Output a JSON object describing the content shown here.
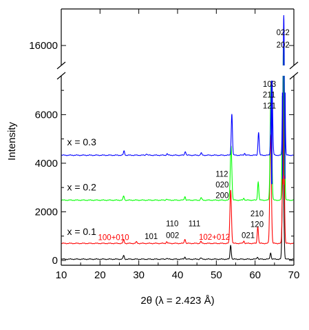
{
  "chart_data": {
    "type": "line",
    "xlabel": "2θ (λ = 2.423 Å)",
    "ylabel": "Intensity",
    "xlim": [
      10,
      70
    ],
    "ylim_lower": [
      -200,
      7600
    ],
    "ylim_upper": [
      14800,
      18200
    ],
    "axis_break": "y",
    "grid": false,
    "x_ticks": [
      10,
      20,
      30,
      40,
      50,
      60,
      70
    ],
    "x_tick_labels": [
      "10",
      "20",
      "30",
      "40",
      "50",
      "60",
      "70"
    ],
    "y_ticks": [
      0,
      2000,
      4000,
      6000,
      16000
    ],
    "y_tick_labels": [
      "0",
      "2000",
      "4000",
      "6000",
      "16000"
    ],
    "series": [
      {
        "name": "",
        "color": "#000000",
        "baseline": 50,
        "peaks": [
          [
            26.1,
            150
          ],
          [
            37.2,
            40
          ],
          [
            41.9,
            90
          ],
          [
            46.0,
            50
          ],
          [
            53.7,
            580
          ],
          [
            60.6,
            90
          ],
          [
            64.0,
            260
          ],
          [
            67.2,
            4200
          ]
        ]
      },
      {
        "name": "x = 0.1",
        "color": "#ff0000",
        "baseline": 700,
        "peaks": [
          [
            26.1,
            150
          ],
          [
            29.4,
            60
          ],
          [
            37.2,
            70
          ],
          [
            41.9,
            180
          ],
          [
            46.0,
            80
          ],
          [
            53.7,
            2200
          ],
          [
            57.1,
            100
          ],
          [
            60.7,
            700
          ],
          [
            64.0,
            4500
          ],
          [
            67.3,
            7000
          ]
        ]
      },
      {
        "name": "x = 0.2",
        "color": "#00ff00",
        "baseline": 2480,
        "peaks": [
          [
            26.1,
            170
          ],
          [
            37.2,
            50
          ],
          [
            41.9,
            150
          ],
          [
            46.1,
            100
          ],
          [
            53.8,
            2250
          ],
          [
            57.1,
            80
          ],
          [
            60.8,
            750
          ],
          [
            64.1,
            4800
          ],
          [
            67.3,
            13500
          ]
        ]
      },
      {
        "name": "x = 0.3",
        "color": "#0000ff",
        "baseline": 4330,
        "peaks": [
          [
            26.2,
            170
          ],
          [
            32.0,
            60
          ],
          [
            37.3,
            60
          ],
          [
            42.0,
            160
          ],
          [
            46.1,
            90
          ],
          [
            54.0,
            1700
          ],
          [
            57.3,
            80
          ],
          [
            60.9,
            950
          ],
          [
            64.3,
            3500
          ],
          [
            67.4,
            13500
          ]
        ]
      }
    ],
    "annotations": [
      {
        "text": "100+010",
        "x": 19.5,
        "y": 830,
        "color": "#ff0000"
      },
      {
        "text": "101",
        "x": 31.5,
        "y": 880,
        "color": "#000000"
      },
      {
        "text": "110",
        "x": 37.0,
        "y": 1400,
        "color": "#000000"
      },
      {
        "text": "002",
        "x": 37.0,
        "y": 920,
        "color": "#000000"
      },
      {
        "text": "111",
        "x": 42.8,
        "y": 1400,
        "color": "#000000"
      },
      {
        "text": "102+012",
        "x": 45.5,
        "y": 850,
        "color": "#ff0000"
      },
      {
        "text": "021",
        "x": 56.5,
        "y": 920,
        "color": "#000000"
      },
      {
        "text": "210",
        "x": 58.8,
        "y": 1810,
        "color": "#000000"
      },
      {
        "text": "120",
        "x": 58.8,
        "y": 1380,
        "color": "#000000"
      },
      {
        "text": "112",
        "x": 49.8,
        "y": 3450,
        "color": "#000000"
      },
      {
        "text": "020",
        "x": 49.8,
        "y": 3000,
        "color": "#000000"
      },
      {
        "text": "200",
        "x": 49.8,
        "y": 2560,
        "color": "#000000"
      },
      {
        "text": "103",
        "x": 62.0,
        "y": 7150,
        "color": "#000000"
      },
      {
        "text": "211",
        "x": 62.0,
        "y": 6700,
        "color": "#000000"
      },
      {
        "text": "121",
        "x": 62.0,
        "y": 6250,
        "color": "#000000"
      },
      {
        "text": "022",
        "x": 65.5,
        "y": 16630,
        "color": "#000000"
      },
      {
        "text": "202",
        "x": 65.5,
        "y": 15880,
        "color": "#000000"
      }
    ],
    "series_labels": [
      {
        "text": "x = 0.1",
        "x": 11.5,
        "y": 1050
      },
      {
        "text": "x = 0.2",
        "x": 11.5,
        "y": 2880
      },
      {
        "text": "x = 0.3",
        "x": 11.5,
        "y": 4730
      }
    ]
  }
}
